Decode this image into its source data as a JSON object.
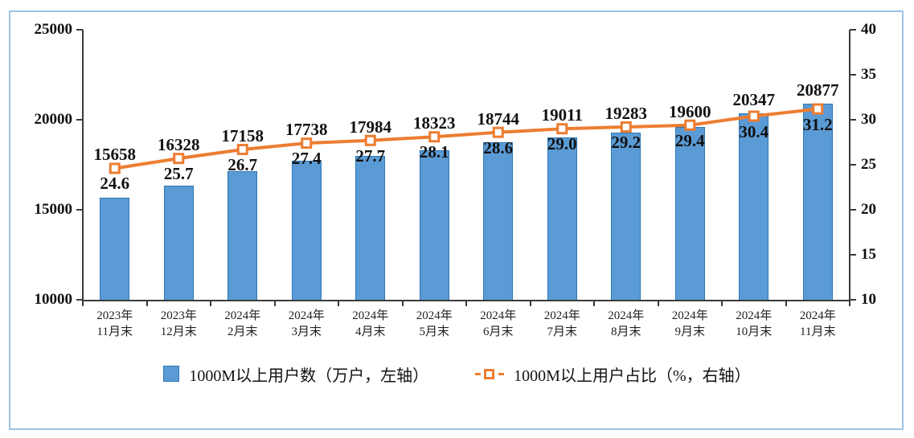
{
  "chart_data": {
    "type": "bar",
    "combo": "bar+line",
    "title": "",
    "categories": [
      "2023年\n11月末",
      "2023年\n12月末",
      "2024年\n2月末",
      "2024年\n3月末",
      "2024年\n4月末",
      "2024年\n5月末",
      "2024年\n6月末",
      "2024年\n7月末",
      "2024年\n8月末",
      "2024年\n9月末",
      "2024年\n10月末",
      "2024年\n11月末"
    ],
    "series": [
      {
        "name": "1000M以上用户数（万户，左轴）",
        "type": "bar",
        "axis": "left",
        "values": [
          15658,
          16328,
          17158,
          17738,
          17984,
          18323,
          18744,
          19011,
          19283,
          19600,
          20347,
          20877
        ]
      },
      {
        "name": "1000M以上用户占比（%，右轴）",
        "type": "line",
        "axis": "right",
        "values": [
          24.6,
          25.7,
          26.7,
          27.4,
          27.7,
          28.1,
          28.6,
          29.0,
          29.2,
          29.4,
          30.4,
          31.2
        ]
      }
    ],
    "left_axis": {
      "min": 10000,
      "max": 25000,
      "step": 5000,
      "ticks": [
        "10000",
        "15000",
        "20000",
        "25000"
      ]
    },
    "right_axis": {
      "min": 10,
      "max": 40,
      "step": 5,
      "ticks": [
        "10",
        "15",
        "20",
        "25",
        "30",
        "35",
        "40"
      ]
    },
    "grid": false,
    "legend_position": "bottom"
  },
  "colors": {
    "bar_fill": "#5B9BD5",
    "bar_border": "#2E75B6",
    "line": "#ED7D31",
    "marker_fill": "#FFFFFF",
    "axis": "#3B3B3B",
    "text": "#111111",
    "frame_border": "#9DC3E6"
  }
}
